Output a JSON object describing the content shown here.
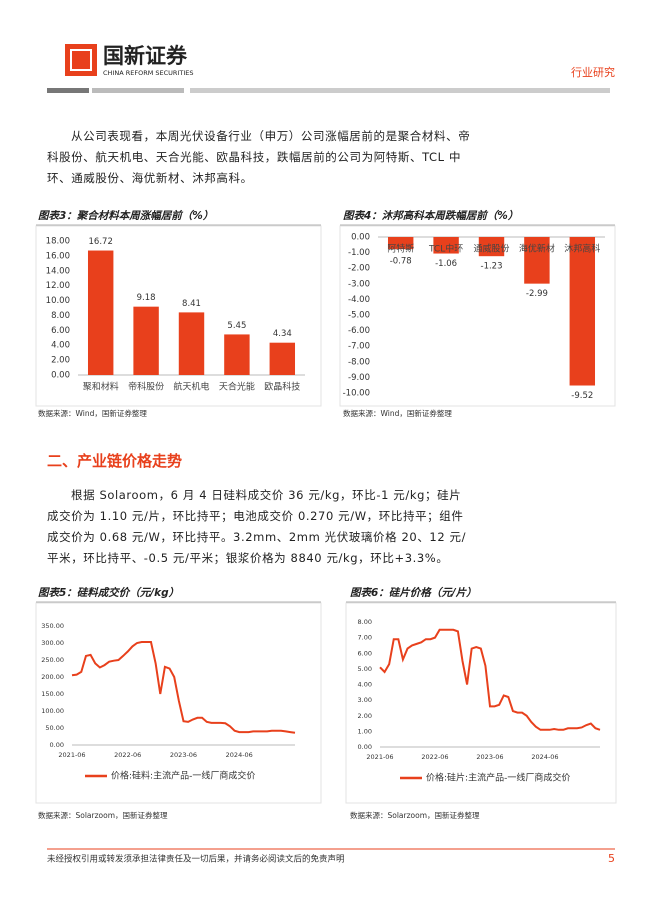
{
  "header": {
    "logo_cn": "国新证券",
    "logo_en": "CHINA REFORM SECURITIES",
    "category": "行业研究"
  },
  "body": {
    "paragraphs": [
      "从公司表现看，本周光伏设备行业（申万）公司涨幅居前的是聚合材料、帝科股份、航天机电、天合光能、欧晶科技，跌幅居前的公司为阿特斯、TCL 中环、通威股份、海优新材、沐邦高科。",
      "根据 Solaroom，6 月 4 日硅料成交价 36 元/kg，环比-1 元/kg；硅片成交价为 1.10 元/片，环比持平；电池成交价 0.270 元/W，环比持平；组件成交价为 0.68 元/W，环比持平。3.2mm、2mm 光伏玻璃价格 20、12 元/平米，环比持平、-0.5 元/平米；银浆价格为 8840 元/kg，环比+3.3%。"
    ],
    "section_heading": "二、产业链价格走势"
  },
  "chart_data": [
    {
      "type": "bar",
      "title": "图表3：聚合材料本周涨幅居前（%）",
      "source": "数据来源：Wind，国新证券整理",
      "categories": [
        "聚和材料",
        "帝科股份",
        "航天机电",
        "天合光能",
        "欧晶科技"
      ],
      "values": [
        16.72,
        9.18,
        8.41,
        5.45,
        4.34
      ],
      "color": "#e8401c",
      "ylim": [
        0,
        18
      ],
      "yticks": [
        {
          "value": 0,
          "label": "0.00"
        },
        {
          "value": 2,
          "label": "2.00"
        },
        {
          "value": 4,
          "label": "4.00"
        },
        {
          "value": 6,
          "label": "6.00"
        },
        {
          "value": 8,
          "label": "8.00"
        },
        {
          "value": 10,
          "label": "10.00"
        },
        {
          "value": 12,
          "label": "12.00"
        },
        {
          "value": 14,
          "label": "14.00"
        },
        {
          "value": 16,
          "label": "16.00"
        },
        {
          "value": 18,
          "label": "18.00"
        }
      ]
    },
    {
      "type": "bar",
      "title": "图表4：沐邦高科本周跌幅居前（%）",
      "source": "数据来源：Wind，国新证券整理",
      "categories": [
        "阿特斯",
        "TCL中环",
        "通威股份",
        "海优新材",
        "沐邦高科"
      ],
      "values": [
        -0.78,
        -1.06,
        -1.23,
        -2.99,
        -9.52
      ],
      "color": "#e8401c",
      "ylim": [
        -10,
        0
      ],
      "yticks": [
        {
          "value": 0,
          "label": "0.00"
        },
        {
          "value": -1,
          "label": "-1.00"
        },
        {
          "value": -2,
          "label": "-2.00"
        },
        {
          "value": -3,
          "label": "-3.00"
        },
        {
          "value": -4,
          "label": "-4.00"
        },
        {
          "value": -5,
          "label": "-5.00"
        },
        {
          "value": -6,
          "label": "-6.00"
        },
        {
          "value": -7,
          "label": "-7.00"
        },
        {
          "value": -8,
          "label": "-8.00"
        },
        {
          "value": -9,
          "label": "-9.00"
        },
        {
          "value": -10,
          "label": "-10.00"
        }
      ]
    },
    {
      "type": "line",
      "title": "图表5：硅料成交价（元/kg）",
      "source": "数据来源：Solarzoom，国新证券整理",
      "x": [
        "2021-06",
        "2021-07",
        "2021-08",
        "2021-09",
        "2021-10",
        "2021-11",
        "2021-12",
        "2022-01",
        "2022-02",
        "2022-03",
        "2022-04",
        "2022-05",
        "2022-06",
        "2022-07",
        "2022-08",
        "2022-09",
        "2022-10",
        "2022-11",
        "2022-12",
        "2023-01",
        "2023-02",
        "2023-03",
        "2023-04",
        "2023-05",
        "2023-06",
        "2023-07",
        "2023-08",
        "2023-09",
        "2023-10",
        "2023-11",
        "2023-12",
        "2024-01",
        "2024-02",
        "2024-03",
        "2024-04",
        "2024-05",
        "2024-06",
        "2024-07",
        "2024-08",
        "2024-09",
        "2024-10",
        "2024-11",
        "2024-12",
        "2025-01",
        "2025-02",
        "2025-03",
        "2025-04",
        "2025-05",
        "2025-06"
      ],
      "series": [
        {
          "name": "价格:硅料:主流产品-一线厂商成交价",
          "color": "#e8401c",
          "values": [
            205,
            207,
            215,
            262,
            265,
            240,
            228,
            235,
            245,
            248,
            250,
            262,
            275,
            290,
            300,
            303,
            303,
            303,
            240,
            150,
            230,
            225,
            200,
            130,
            70,
            68,
            75,
            80,
            80,
            68,
            65,
            65,
            65,
            64,
            55,
            42,
            38,
            38,
            38,
            40,
            40,
            40,
            40,
            42,
            42,
            42,
            40,
            38,
            36
          ]
        }
      ],
      "xlim": [
        "2021-06",
        "2025-06"
      ],
      "xticks": [
        "2021-06",
        "2022-06",
        "2023-06",
        "2024-06"
      ],
      "ylim": [
        0,
        350
      ],
      "yticks": [
        {
          "value": 0,
          "label": "0.00"
        },
        {
          "value": 50,
          "label": "50.00"
        },
        {
          "value": 100,
          "label": "100.00"
        },
        {
          "value": 150,
          "label": "150.00"
        },
        {
          "value": 200,
          "label": "200.00"
        },
        {
          "value": 250,
          "label": "250.00"
        },
        {
          "value": 300,
          "label": "300.00"
        },
        {
          "value": 350,
          "label": "350.00"
        }
      ]
    },
    {
      "type": "line",
      "title": "图表6：硅片价格（元/片）",
      "source": "数据来源：Solarzoom，国新证券整理",
      "x": [
        "2021-06",
        "2021-07",
        "2021-08",
        "2021-09",
        "2021-10",
        "2021-11",
        "2021-12",
        "2022-01",
        "2022-02",
        "2022-03",
        "2022-04",
        "2022-05",
        "2022-06",
        "2022-07",
        "2022-08",
        "2022-09",
        "2022-10",
        "2022-11",
        "2022-12",
        "2023-01",
        "2023-02",
        "2023-03",
        "2023-04",
        "2023-05",
        "2023-06",
        "2023-07",
        "2023-08",
        "2023-09",
        "2023-10",
        "2023-11",
        "2023-12",
        "2024-01",
        "2024-02",
        "2024-03",
        "2024-04",
        "2024-05",
        "2024-06",
        "2024-07",
        "2024-08",
        "2024-09",
        "2024-10",
        "2024-11",
        "2024-12",
        "2025-01",
        "2025-02",
        "2025-03",
        "2025-04",
        "2025-05",
        "2025-06"
      ],
      "series": [
        {
          "name": "价格:硅片:主流产品-一线厂商成交价",
          "color": "#e8401c",
          "values": [
            5.1,
            4.8,
            5.3,
            6.9,
            6.9,
            5.6,
            6.3,
            6.5,
            6.6,
            6.7,
            6.9,
            6.9,
            7.0,
            7.5,
            7.5,
            7.5,
            7.5,
            7.4,
            5.5,
            4.0,
            6.3,
            6.4,
            6.3,
            5.2,
            2.6,
            2.6,
            2.7,
            3.3,
            3.2,
            2.3,
            2.2,
            2.2,
            2.0,
            1.6,
            1.3,
            1.1,
            1.1,
            1.1,
            1.15,
            1.1,
            1.1,
            1.2,
            1.2,
            1.2,
            1.25,
            1.4,
            1.5,
            1.2,
            1.1
          ]
        }
      ],
      "xlim": [
        "2021-06",
        "2025-06"
      ],
      "xticks": [
        "2021-06",
        "2022-06",
        "2023-06",
        "2024-06"
      ],
      "ylim": [
        0,
        8
      ],
      "yticks": [
        {
          "value": 0,
          "label": "0.00"
        },
        {
          "value": 1,
          "label": "1.00"
        },
        {
          "value": 2,
          "label": "2.00"
        },
        {
          "value": 3,
          "label": "3.00"
        },
        {
          "value": 4,
          "label": "4.00"
        },
        {
          "value": 5,
          "label": "5.00"
        },
        {
          "value": 6,
          "label": "6.00"
        },
        {
          "value": 7,
          "label": "7.00"
        },
        {
          "value": 8,
          "label": "8.00"
        }
      ]
    }
  ],
  "footer": {
    "disclaimer": "未经授权引用或转发须承担法律责任及一切后果，并请务必阅读文后的免责声明",
    "page": "5"
  }
}
